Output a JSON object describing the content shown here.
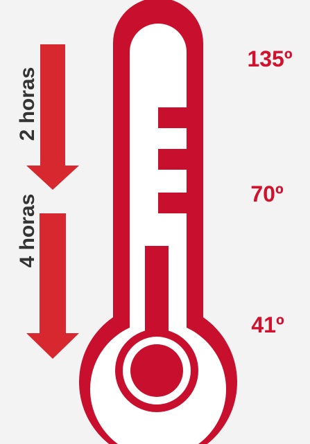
{
  "arrows": {
    "top_label": "2 horas",
    "bottom_label": "4 horas"
  },
  "temperatures": {
    "high": "135º",
    "mid": "70º",
    "low": "41º"
  },
  "colors": {
    "thermometer": "#c8102e",
    "arrow": "#d7282f",
    "temperature_text": "#d0122e",
    "arrow_text": "#333333",
    "background": "#f3f3f3",
    "thermometer_inner": "#ffffff"
  },
  "icons": {
    "thermometer": "thermometer-icon",
    "arrow": "down-arrow-icon"
  }
}
